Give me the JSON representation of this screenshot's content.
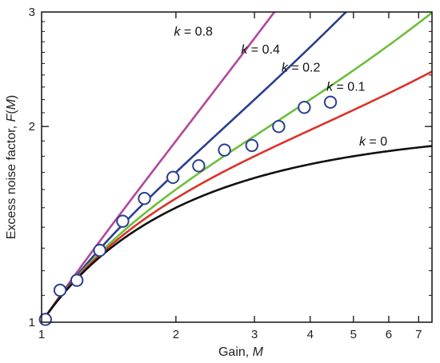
{
  "chart_data": {
    "type": "line",
    "xlabel": "Gain, M",
    "xlabel_parts": {
      "text": "Gain, ",
      "var": "M"
    },
    "ylabel": "Excess noise factor, F(M)",
    "ylabel_parts": {
      "text": "Excess noise factor, ",
      "var": "F",
      "open": "(",
      "arg": "M",
      "close": ")"
    },
    "x_scale": "log",
    "y_scale": "log",
    "xlim": [
      1,
      7.5
    ],
    "ylim": [
      1,
      3
    ],
    "x_ticks": [
      {
        "value": 1,
        "label": "1"
      },
      {
        "value": 2,
        "label": "2"
      },
      {
        "value": 3,
        "label": "3"
      },
      {
        "value": 4,
        "label": "4"
      },
      {
        "value": 5,
        "label": "5"
      },
      {
        "value": 6,
        "label": "6"
      },
      {
        "value": 7,
        "label": "7"
      }
    ],
    "y_ticks": [
      {
        "value": 1,
        "label": "1"
      },
      {
        "value": 2,
        "label": "2"
      },
      {
        "value": 3,
        "label": "3"
      }
    ],
    "y_minor_ticks": [
      1.1,
      1.2,
      1.3,
      1.4,
      1.5,
      1.6,
      1.7,
      1.8,
      1.9,
      2.1,
      2.2,
      2.3,
      2.4,
      2.5,
      2.6,
      2.7,
      2.8,
      2.9
    ],
    "grid": false,
    "series": [
      {
        "k": 0.8,
        "var": "k",
        "eq": " = ",
        "value_label": "0.8",
        "color": "#b0489c",
        "label_x": 1.98,
        "label_y": 2.76
      },
      {
        "k": 0.4,
        "var": "k",
        "eq": " = ",
        "value_label": "0.4",
        "color": "#2c3f8f",
        "label_x": 2.8,
        "label_y": 2.59
      },
      {
        "k": 0.2,
        "var": "k",
        "eq": " = ",
        "value_label": "0.2",
        "color": "#6cbf3c",
        "label_x": 3.45,
        "label_y": 2.43
      },
      {
        "k": 0.1,
        "var": "k",
        "eq": " = ",
        "value_label": "0.1",
        "color": "#d9342b",
        "label_x": 4.35,
        "label_y": 2.27
      },
      {
        "k": 0.0,
        "var": "k",
        "eq": " = ",
        "value_label": "0",
        "color": "#111111",
        "label_x": 5.15,
        "label_y": 1.87
      }
    ],
    "measured_points": {
      "color": "#2c3f8f",
      "x": [
        1.02,
        1.1,
        1.2,
        1.35,
        1.52,
        1.7,
        1.97,
        2.25,
        2.57,
        2.96,
        3.4,
        3.88,
        4.44
      ],
      "y": [
        1.01,
        1.12,
        1.16,
        1.29,
        1.43,
        1.55,
        1.67,
        1.74,
        1.84,
        1.87,
        2.0,
        2.14,
        2.18
      ]
    }
  }
}
